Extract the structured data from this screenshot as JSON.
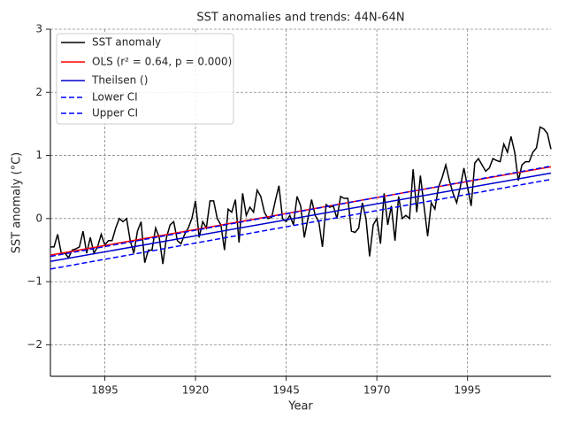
{
  "chart_data": {
    "type": "line",
    "title": "SST anomalies and trends: 44N-64N",
    "xlabel": "Year",
    "ylabel": "SST anomaly (°C)",
    "xlim": [
      1880,
      2018
    ],
    "ylim": [
      -2.5,
      3
    ],
    "xticks": [
      1895,
      1920,
      1945,
      1970,
      1995
    ],
    "yticks": [
      {
        "value": -2,
        "label": "−2"
      },
      {
        "value": -1,
        "label": "−1"
      },
      0,
      1,
      2,
      3
    ],
    "grid": true,
    "legend": "upper left",
    "series": [
      {
        "name": "SST anomaly",
        "color": "#000000",
        "linestyle": "solid",
        "x": [
          1880,
          1881,
          1882,
          1883,
          1884,
          1885,
          1886,
          1887,
          1888,
          1889,
          1890,
          1891,
          1892,
          1893,
          1894,
          1895,
          1896,
          1897,
          1898,
          1899,
          1900,
          1901,
          1902,
          1903,
          1904,
          1905,
          1906,
          1907,
          1908,
          1909,
          1910,
          1911,
          1912,
          1913,
          1914,
          1915,
          1916,
          1917,
          1918,
          1919,
          1920,
          1921,
          1922,
          1923,
          1924,
          1925,
          1926,
          1927,
          1928,
          1929,
          1930,
          1931,
          1932,
          1933,
          1934,
          1935,
          1936,
          1937,
          1938,
          1939,
          1940,
          1941,
          1942,
          1943,
          1944,
          1945,
          1946,
          1947,
          1948,
          1949,
          1950,
          1951,
          1952,
          1953,
          1954,
          1955,
          1956,
          1957,
          1958,
          1959,
          1960,
          1961,
          1962,
          1963,
          1964,
          1965,
          1966,
          1967,
          1968,
          1969,
          1970,
          1971,
          1972,
          1973,
          1974,
          1975,
          1976,
          1977,
          1978,
          1979,
          1980,
          1981,
          1982,
          1983,
          1984,
          1985,
          1986,
          1987,
          1988,
          1989,
          1990,
          1991,
          1992,
          1993,
          1994,
          1995,
          1996,
          1997,
          1998,
          1999,
          2000,
          2001,
          2002,
          2003,
          2004,
          2005,
          2006,
          2007,
          2008,
          2009,
          2010,
          2011,
          2012,
          2013,
          2014,
          2015,
          2016,
          2017,
          2018
        ],
        "values": [
          -0.45,
          -0.45,
          -0.25,
          -0.55,
          -0.55,
          -0.62,
          -0.5,
          -0.48,
          -0.45,
          -0.2,
          -0.55,
          -0.3,
          -0.55,
          -0.45,
          -0.25,
          -0.42,
          -0.35,
          -0.35,
          -0.15,
          0.0,
          -0.05,
          0.0,
          -0.35,
          -0.55,
          -0.2,
          -0.05,
          -0.7,
          -0.5,
          -0.5,
          -0.15,
          -0.3,
          -0.72,
          -0.3,
          -0.1,
          -0.05,
          -0.35,
          -0.4,
          -0.25,
          -0.15,
          0.0,
          0.28,
          -0.3,
          -0.05,
          -0.15,
          0.28,
          0.28,
          0.0,
          -0.1,
          -0.5,
          0.15,
          0.1,
          0.3,
          -0.38,
          0.4,
          0.05,
          0.18,
          0.1,
          0.45,
          0.35,
          0.1,
          0.0,
          0.02,
          0.28,
          0.52,
          0.0,
          -0.05,
          0.05,
          -0.1,
          0.35,
          0.2,
          -0.3,
          0.0,
          0.3,
          0.05,
          -0.05,
          -0.45,
          0.22,
          0.18,
          0.2,
          0.0,
          0.35,
          0.32,
          0.32,
          -0.2,
          -0.22,
          -0.15,
          0.25,
          0.0,
          -0.6,
          -0.1,
          0.0,
          -0.4,
          0.4,
          -0.1,
          0.2,
          -0.35,
          0.35,
          0.0,
          0.05,
          0.0,
          0.78,
          0.1,
          0.68,
          0.2,
          -0.28,
          0.25,
          0.15,
          0.5,
          0.65,
          0.85,
          0.6,
          0.4,
          0.25,
          0.5,
          0.8,
          0.5,
          0.2,
          0.88,
          0.95,
          0.85,
          0.75,
          0.8,
          0.95,
          0.92,
          0.9,
          1.18,
          1.05,
          1.3,
          1.05,
          0.6,
          0.85,
          0.9,
          0.9,
          1.05,
          1.12,
          1.45,
          1.42,
          1.35,
          1.1
        ]
      },
      {
        "name": "OLS (r² = 0.64, p = 0.000)",
        "color": "#ff0000",
        "linestyle": "solid",
        "x": [
          1880,
          2018
        ],
        "values": [
          -0.58,
          0.82
        ]
      },
      {
        "name": "Theilsen ()",
        "color": "#0000cc",
        "linestyle": "solid",
        "x": [
          1880,
          2018
        ],
        "values": [
          -0.68,
          0.72
        ]
      },
      {
        "name": "Lower CI",
        "color": "#0000ff",
        "linestyle": "dashed",
        "x": [
          1880,
          2018
        ],
        "values": [
          -0.8,
          0.62
        ]
      },
      {
        "name": "Upper CI",
        "color": "#0000ff",
        "linestyle": "dashed",
        "x": [
          1880,
          2018
        ],
        "values": [
          -0.6,
          0.83
        ]
      }
    ]
  }
}
